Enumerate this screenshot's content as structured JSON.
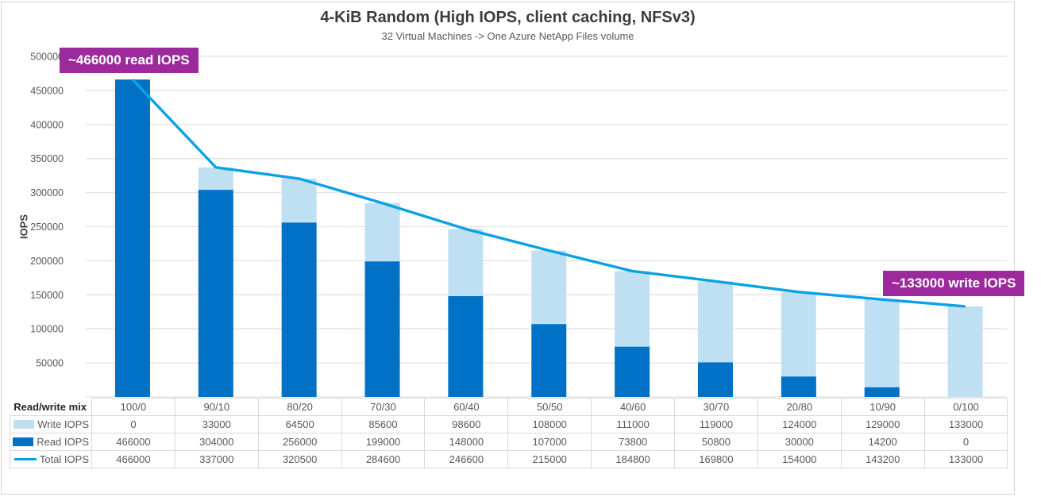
{
  "title": "4-KiB Random (High IOPS, client caching, NFSv3)",
  "subtitle": "32 Virtual Machines -> One Azure NetApp Files volume",
  "ylabel": "IOPS",
  "annotations": {
    "left": "~466000 read IOPS",
    "right": "~133000 write IOPS"
  },
  "table": {
    "row_header": "Read/write mix"
  },
  "colors": {
    "read_bar": "#0071C5",
    "write_bar": "#BFE0F2",
    "total_line": "#0AA2E5",
    "annotation_bg": "#9C2A9C",
    "grid": "#E2E2E2",
    "table_border": "#D9D9D9",
    "text_dark": "#3C3C3C",
    "text_gray": "#595959"
  },
  "chart_data": {
    "type": "bar",
    "subtype": "stacked-bars-with-line-overlay",
    "title": "4-KiB Random (High IOPS, client caching, NFSv3)",
    "subtitle": "32 Virtual Machines -> One Azure NetApp Files volume",
    "xlabel": "Read/write mix",
    "ylabel": "IOPS",
    "ylim": [
      0,
      500000
    ],
    "ytick_step": 50000,
    "grid": "horizontal",
    "legend_position": "table-left",
    "categories": [
      "100/0",
      "90/10",
      "80/20",
      "70/30",
      "60/40",
      "50/50",
      "40/60",
      "30/70",
      "20/80",
      "10/90",
      "0/100"
    ],
    "series": [
      {
        "name": "Write IOPS",
        "type": "bar",
        "stack_position": "top",
        "color": "#BFE0F2",
        "values": [
          0,
          33000,
          64500,
          85600,
          98600,
          108000,
          111000,
          119000,
          124000,
          129000,
          133000
        ]
      },
      {
        "name": "Read IOPS",
        "type": "bar",
        "stack_position": "bottom",
        "color": "#0071C5",
        "values": [
          466000,
          304000,
          256000,
          199000,
          148000,
          107000,
          73800,
          50800,
          30000,
          14200,
          0
        ]
      },
      {
        "name": "Total IOPS",
        "type": "line",
        "color": "#0AA2E5",
        "values": [
          466000,
          337000,
          320500,
          284600,
          246600,
          215000,
          184800,
          169800,
          154000,
          143200,
          133000
        ]
      }
    ]
  }
}
